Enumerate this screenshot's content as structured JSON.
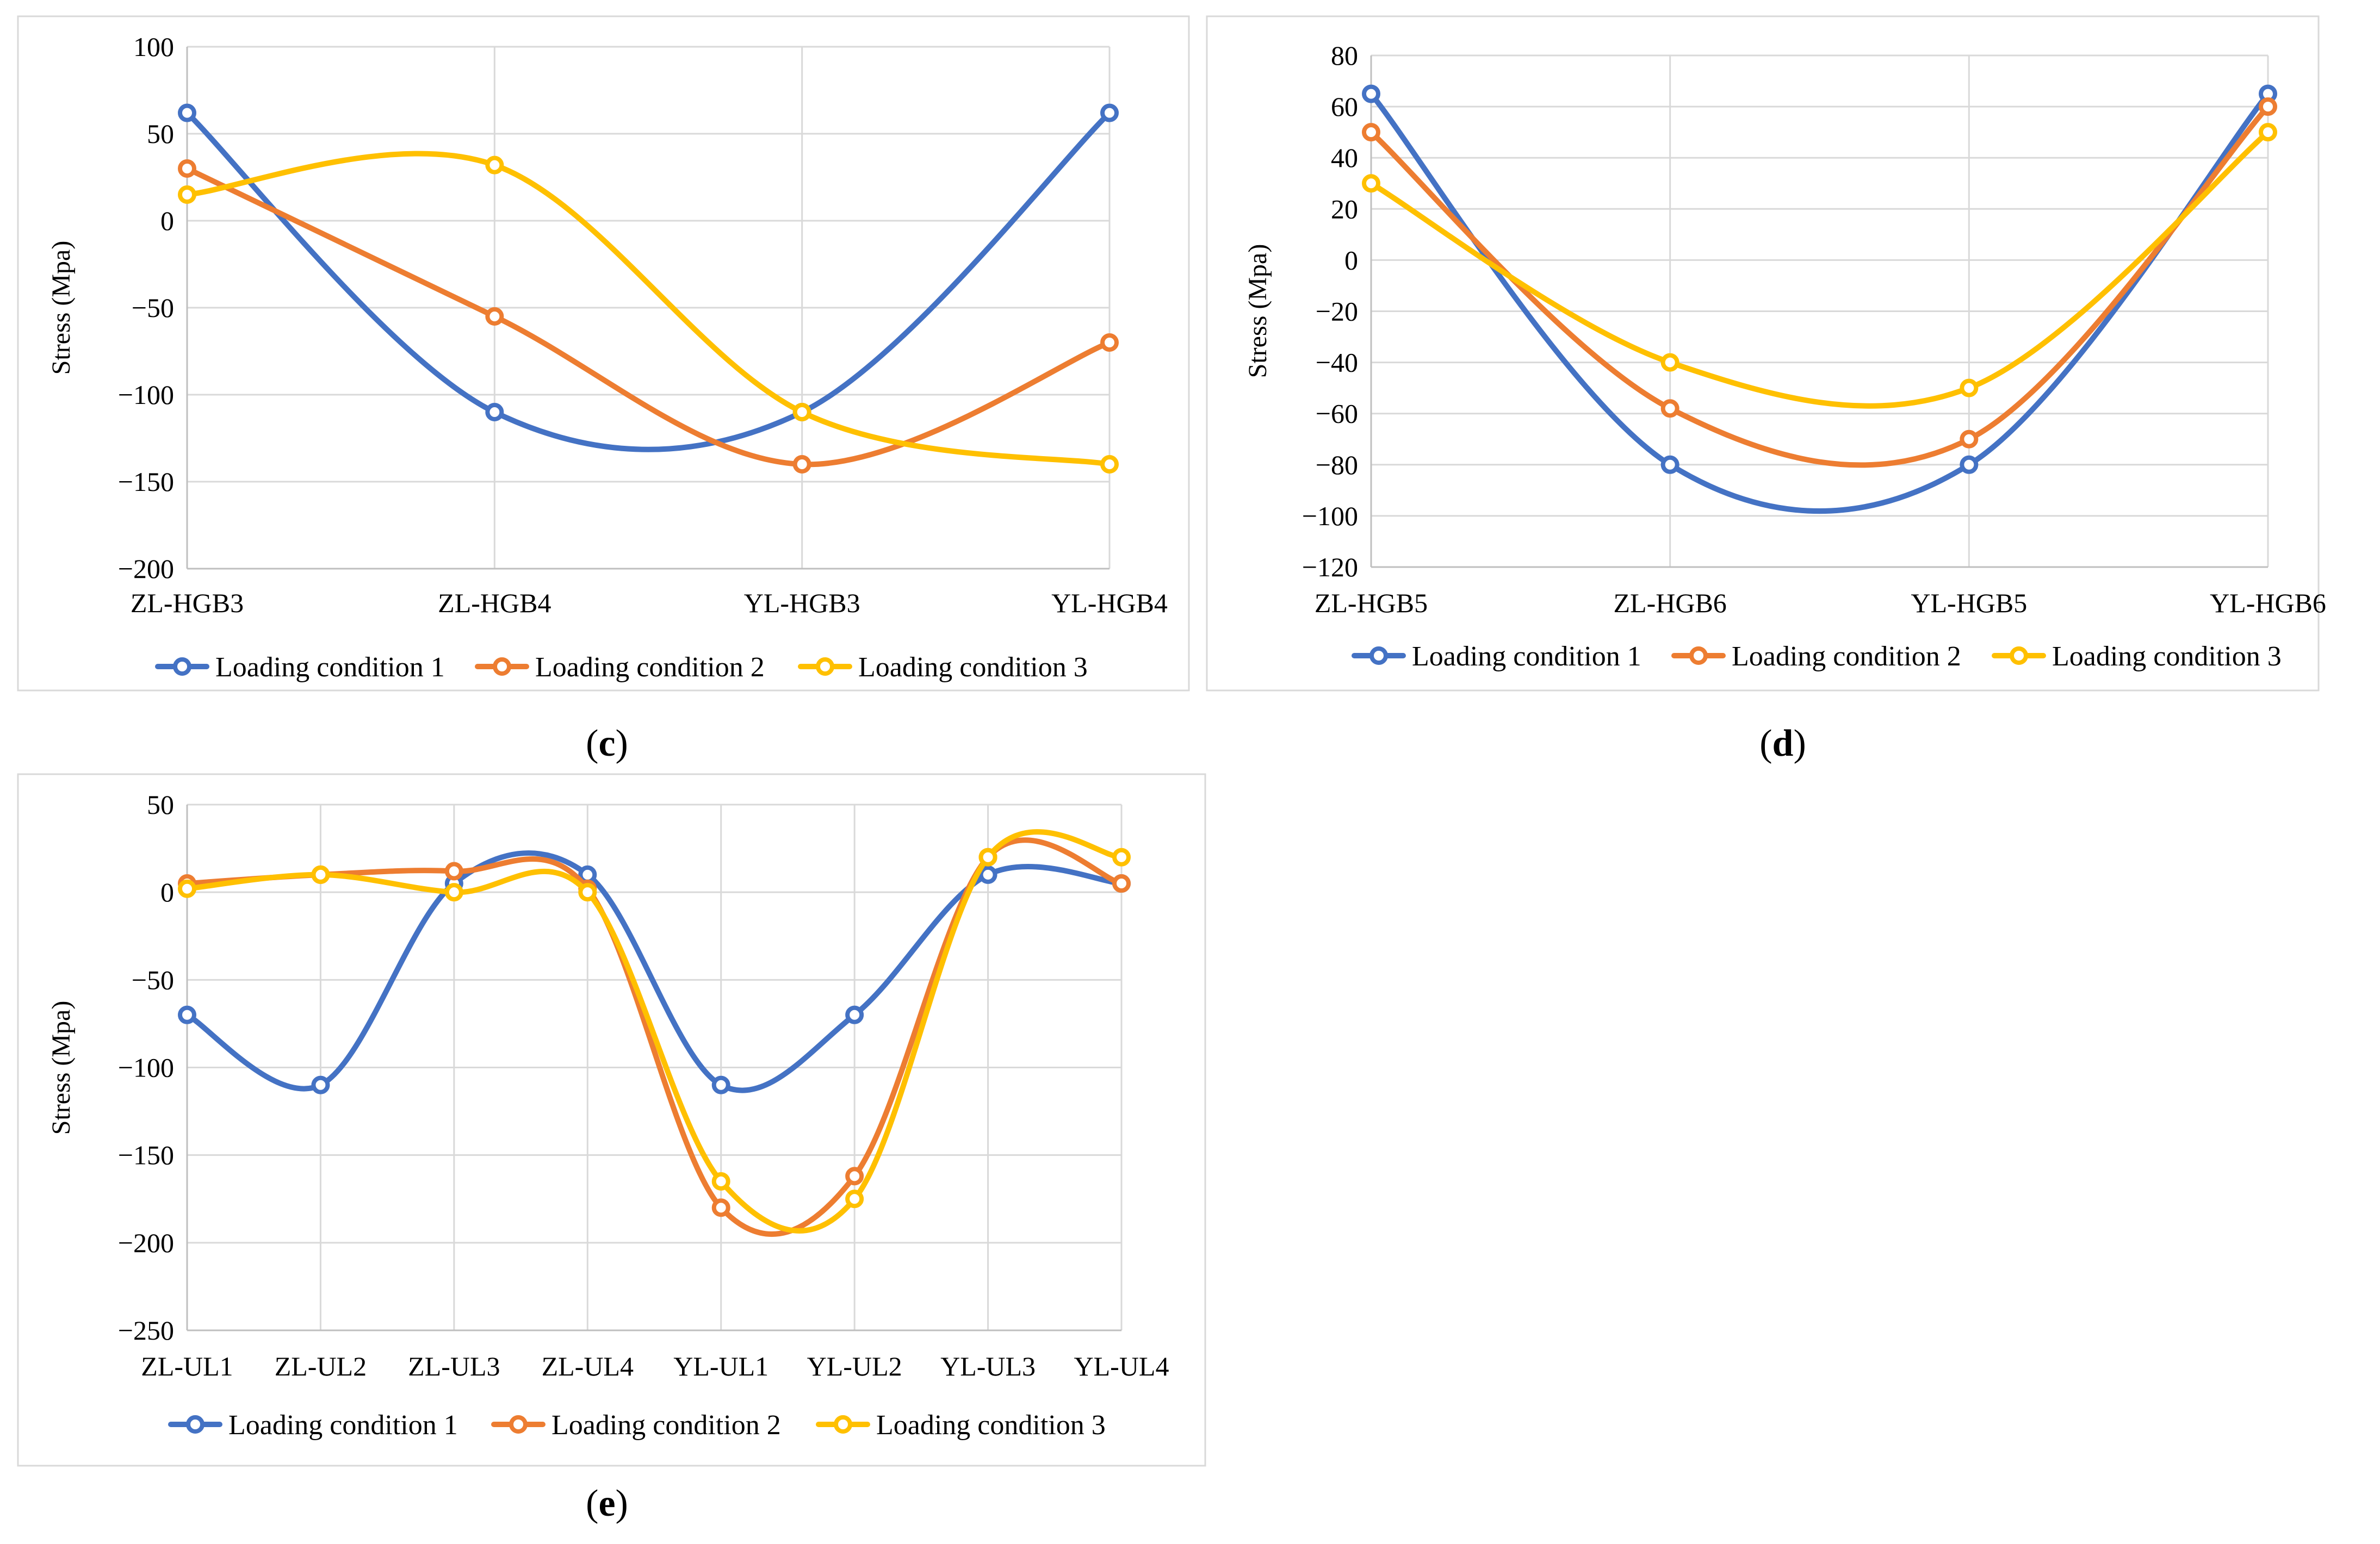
{
  "colors": {
    "loading_condition_1": "#4472C4",
    "loading_condition_2": "#ED7D31",
    "loading_condition_3": "#FFC000"
  },
  "chart_data": [
    {
      "id": "c",
      "type": "line",
      "caption": "c",
      "categories": [
        "ZL-HGB3",
        "ZL-HGB4",
        "YL-HGB3",
        "YL-HGB4"
      ],
      "ylabel": "Stress (Mpa)",
      "ylim": [
        -200,
        100
      ],
      "yticks": [
        100,
        50,
        0,
        -50,
        -100,
        -150,
        -200
      ],
      "ytick_labels": [
        "100",
        "50",
        "0",
        "−50",
        "−100",
        "−150",
        "−200"
      ],
      "grid": true,
      "smooth": true,
      "legend": "bottom",
      "series": [
        {
          "name": "Loading condition 1",
          "color": "#4472C4",
          "values": [
            62,
            -110,
            -110,
            62
          ]
        },
        {
          "name": "Loading condition 2",
          "color": "#ED7D31",
          "values": [
            30,
            -55,
            -140,
            -70
          ]
        },
        {
          "name": "Loading condition 3",
          "color": "#FFC000",
          "values": [
            15,
            32,
            -110,
            -140
          ]
        }
      ]
    },
    {
      "id": "d",
      "type": "line",
      "caption": "d",
      "categories": [
        "ZL-HGB5",
        "ZL-HGB6",
        "YL-HGB5",
        "YL-HGB6"
      ],
      "ylabel": "Stress (Mpa)",
      "ylim": [
        -120,
        80
      ],
      "yticks": [
        80,
        60,
        40,
        20,
        0,
        -20,
        -40,
        -60,
        -80,
        -100,
        -120
      ],
      "ytick_labels": [
        "80",
        "60",
        "40",
        "20",
        "0",
        "−20",
        "−40",
        "−60",
        "−80",
        "−100",
        "−120"
      ],
      "grid": true,
      "smooth": true,
      "legend": "bottom",
      "series": [
        {
          "name": "Loading condition 1",
          "color": "#4472C4",
          "values": [
            65,
            -80,
            -80,
            65
          ]
        },
        {
          "name": "Loading condition 2",
          "color": "#ED7D31",
          "values": [
            50,
            -58,
            -70,
            60
          ]
        },
        {
          "name": "Loading condition 3",
          "color": "#FFC000",
          "values": [
            30,
            -40,
            -50,
            50
          ]
        }
      ]
    },
    {
      "id": "e",
      "type": "line",
      "caption": "e",
      "categories": [
        "ZL-UL1",
        "ZL-UL2",
        "ZL-UL3",
        "ZL-UL4",
        "YL-UL1",
        "YL-UL2",
        "YL-UL3",
        "YL-UL4"
      ],
      "ylabel": "Stress (Mpa)",
      "ylim": [
        -250,
        50
      ],
      "yticks": [
        50,
        0,
        -50,
        -100,
        -150,
        -200,
        -250
      ],
      "ytick_labels": [
        "50",
        "0",
        "−50",
        "−100",
        "−150",
        "−200",
        "−250"
      ],
      "grid": true,
      "smooth": true,
      "legend": "bottom",
      "series": [
        {
          "name": "Loading condition 1",
          "color": "#4472C4",
          "values": [
            -70,
            -110,
            5,
            10,
            -110,
            -70,
            10,
            5
          ]
        },
        {
          "name": "Loading condition 2",
          "color": "#ED7D31",
          "values": [
            5,
            10,
            12,
            2,
            -180,
            -162,
            20,
            5
          ]
        },
        {
          "name": "Loading condition 3",
          "color": "#FFC000",
          "values": [
            2,
            10,
            0,
            0,
            -165,
            -175,
            20,
            20
          ]
        }
      ]
    }
  ]
}
